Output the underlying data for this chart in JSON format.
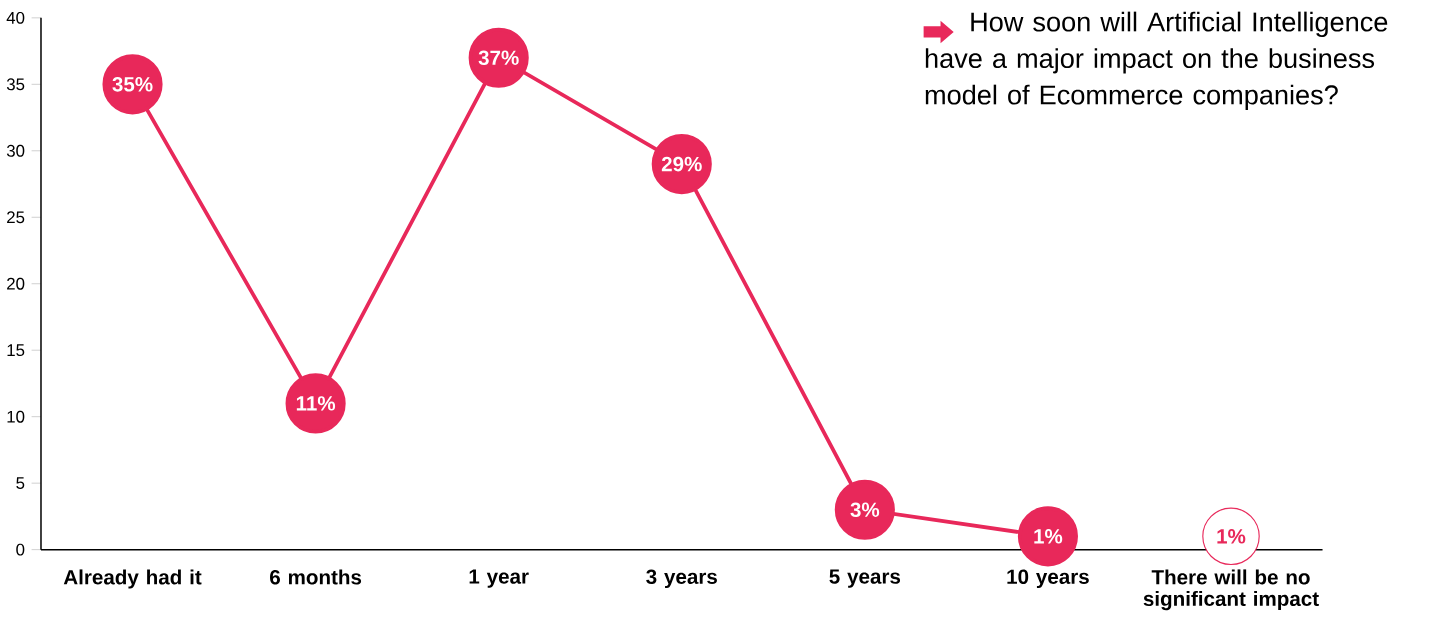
{
  "chart_data": {
    "type": "line",
    "title": "How soon will Artificial Intelligence have a major impact on the business model of Ecommerce companies?",
    "categories": [
      "Already had it",
      "6 months",
      "1 year",
      "3 years",
      "5 years",
      "10 years",
      "There will be no significant impact"
    ],
    "series": [
      {
        "color": "#e8285a",
        "values": [
          35,
          11,
          37,
          29,
          3,
          1,
          null
        ],
        "value_labels": [
          "35%",
          "11%",
          "37%",
          "29%",
          "3%",
          "1%",
          null
        ]
      },
      {
        "type": "scatter",
        "color": "#e8285a",
        "values": [
          null,
          null,
          null,
          null,
          null,
          null,
          1
        ],
        "value_labels": [
          null,
          null,
          null,
          null,
          null,
          null,
          "1%"
        ]
      }
    ],
    "ylim": [
      0,
      40
    ],
    "yticks": [
      0,
      5,
      10,
      15,
      20,
      25,
      30,
      35,
      40
    ],
    "marker": "circle",
    "line_style": "solid"
  }
}
